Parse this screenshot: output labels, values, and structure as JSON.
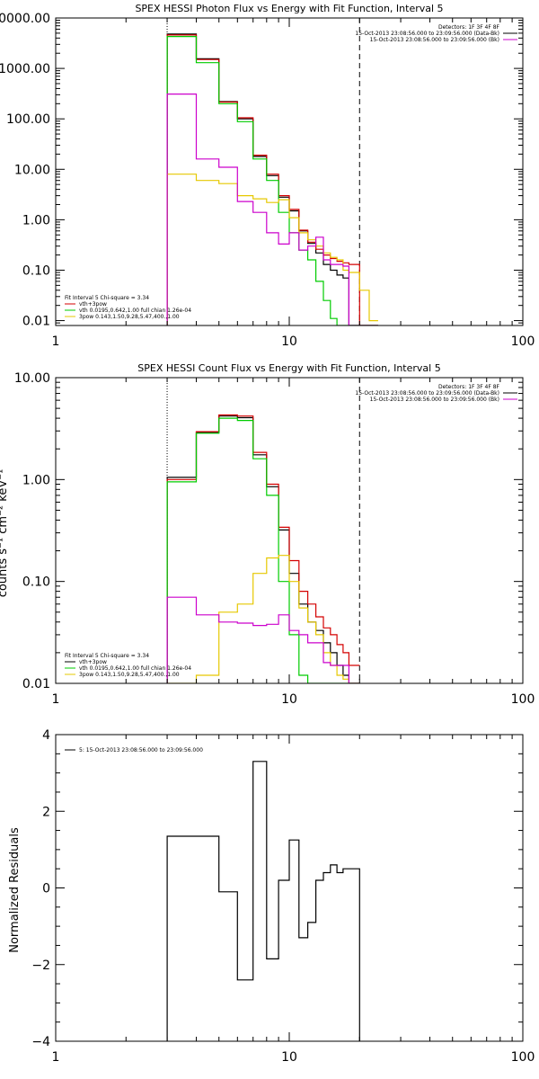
{
  "colors": {
    "total": "#000000",
    "sum": "#d40000",
    "vth": "#00cc00",
    "powerlaw": "#e6c800",
    "background": "#cc00cc",
    "residual": "#000000"
  },
  "chart_data": [
    {
      "type": "line",
      "title": "SPEX HESSI Photon Flux vs Energy with Fit Function, Interval 5",
      "xscale": "log",
      "yscale": "log",
      "xlim": [
        1,
        100
      ],
      "ylim": [
        0.008,
        10000
      ],
      "xticks": [
        {
          "value": 1,
          "label": "1"
        },
        {
          "value": 10,
          "label": "10"
        },
        {
          "value": 100,
          "label": "100"
        }
      ],
      "yticks": [
        {
          "value": 10000,
          "label": "10000.00"
        },
        {
          "value": 1000,
          "label": "1000.00"
        },
        {
          "value": 100,
          "label": "100.00"
        },
        {
          "value": 10,
          "label": "10.00"
        },
        {
          "value": 1,
          "label": "1.00"
        },
        {
          "value": 0.1,
          "label": "0.10"
        },
        {
          "value": 0.01,
          "label": "0.01"
        }
      ],
      "edges": [
        3,
        4,
        5,
        6,
        7,
        8,
        9,
        10,
        11,
        12,
        13,
        14,
        15,
        16,
        17,
        18,
        20,
        22,
        24
      ],
      "series": [
        {
          "key": "total",
          "values": [
            4800,
            1550,
            220,
            100,
            18,
            7.5,
            2.8,
            1.5,
            0.6,
            0.34,
            0.22,
            0.13,
            0.1,
            0.08,
            0.07,
            0.006,
            0.006,
            0.006
          ]
        },
        {
          "key": "sum",
          "values": [
            4600,
            1500,
            215,
            105,
            19,
            8,
            3.0,
            1.6,
            0.62,
            0.36,
            0.26,
            0.2,
            0.17,
            0.15,
            0.14,
            0.13,
            0.006,
            0.006
          ]
        },
        {
          "key": "vth",
          "values": [
            4300,
            1300,
            200,
            88,
            16,
            6,
            1.4,
            0.55,
            0.25,
            0.16,
            0.06,
            0.025,
            0.011,
            0.006,
            0.006,
            0.006,
            0.006,
            0.006
          ]
        },
        {
          "key": "powerlaw",
          "values": [
            8,
            6,
            5.2,
            3,
            2.6,
            2.2,
            2.5,
            1.1,
            0.55,
            0.4,
            0.3,
            0.22,
            0.18,
            0.16,
            0.1,
            0.09,
            0.04,
            0.01
          ]
        },
        {
          "key": "background",
          "values": [
            310,
            16,
            11,
            2.3,
            1.4,
            0.55,
            0.33,
            0.55,
            0.25,
            0.3,
            0.45,
            0.16,
            0.13,
            0.13,
            0.12,
            0.006,
            0.006,
            0.006
          ]
        }
      ],
      "vlines": [
        {
          "x": 3,
          "style": "dotted"
        },
        {
          "x": 20,
          "style": "dashed"
        }
      ],
      "legend_right": [
        "Detectors: 1F 3F 4F 8F",
        "15-Oct-2013 23:08:56.000 to 23:09:56.000 (Data-Bk)",
        "15-Oct-2013 23:08:56.000 to 23:09:56.000 (Bk)"
      ],
      "legend_right_colors": [
        "",
        "total",
        "background"
      ],
      "legend_left": [
        {
          "text": "Fit Interval 5   Chi-square = 3.34",
          "key": ""
        },
        {
          "text": "vth+3pow",
          "key": "sum"
        },
        {
          "text": "vth 0.0195,0.642,1.00  full chian 1.26e-04",
          "key": "vth"
        },
        {
          "text": "3pow 0.143,1.50,9.28,5.47,400.,1.00",
          "key": "powerlaw"
        }
      ]
    },
    {
      "type": "line",
      "title": "SPEX HESSI Count Flux vs Energy with Fit Function, Interval 5",
      "ylabel": "counts s⁻¹ cm⁻² keV⁻¹",
      "xscale": "log",
      "yscale": "log",
      "xlim": [
        1,
        100
      ],
      "ylim": [
        0.01,
        10
      ],
      "xticks": [
        {
          "value": 1,
          "label": "1"
        },
        {
          "value": 10,
          "label": "10"
        },
        {
          "value": 100,
          "label": "100"
        }
      ],
      "yticks": [
        {
          "value": 10,
          "label": "10.00"
        },
        {
          "value": 1,
          "label": "1.00"
        },
        {
          "value": 0.1,
          "label": "0.10"
        },
        {
          "value": 0.01,
          "label": "0.01"
        }
      ],
      "edges": [
        3,
        4,
        5,
        6,
        7,
        8,
        9,
        10,
        11,
        12,
        13,
        14,
        15,
        16,
        17,
        18,
        20
      ],
      "series": [
        {
          "key": "total",
          "values": [
            1.05,
            2.9,
            4.2,
            4.05,
            1.75,
            0.85,
            0.32,
            0.12,
            0.06,
            0.04,
            0.033,
            0.025,
            0.02,
            0.015,
            0.012,
            0.01
          ]
        },
        {
          "key": "sum",
          "values": [
            1.0,
            2.95,
            4.3,
            4.2,
            1.85,
            0.9,
            0.34,
            0.16,
            0.08,
            0.06,
            0.045,
            0.035,
            0.03,
            0.024,
            0.02,
            0.015
          ]
        },
        {
          "key": "vth",
          "values": [
            0.95,
            2.85,
            4.0,
            3.8,
            1.6,
            0.7,
            0.1,
            0.03,
            0.012,
            0.0095,
            0.0095,
            0.0095,
            0.0095,
            0.0095,
            0.0095,
            0.0095
          ]
        },
        {
          "key": "powerlaw",
          "values": [
            0.0095,
            0.012,
            0.05,
            0.06,
            0.12,
            0.17,
            0.18,
            0.1,
            0.055,
            0.04,
            0.03,
            0.02,
            0.015,
            0.012,
            0.011,
            0.01
          ]
        },
        {
          "key": "background",
          "values": [
            0.07,
            0.047,
            0.04,
            0.039,
            0.037,
            0.038,
            0.047,
            0.033,
            0.03,
            0.025,
            0.025,
            0.016,
            0.015,
            0.015,
            0.015,
            0.0095
          ]
        }
      ],
      "vlines": [
        {
          "x": 3,
          "style": "dotted"
        },
        {
          "x": 20,
          "style": "dashed"
        }
      ],
      "legend_right": [
        "Detectors: 1F 3F 4F 8F",
        "15-Oct-2013 23:08:56.000 to 23:09:56.000 (Data-Bk)",
        "15-Oct-2013 23:08:56.000 to 23:09:56.000 (Bk)"
      ],
      "legend_right_colors": [
        "",
        "total",
        "background"
      ],
      "legend_left": [
        {
          "text": "Fit Interval 5   Chi-square = 3.34",
          "key": ""
        },
        {
          "text": "vth+3pow",
          "key": "total"
        },
        {
          "text": "vth 0.0195,0.642,1.00  full chian 1.26e-04",
          "key": "vth"
        },
        {
          "text": "3pow 0.143,1.50,9.28,5.47,400.,1.00",
          "key": "powerlaw"
        }
      ]
    },
    {
      "type": "line",
      "title": "",
      "ylabel": "Normalized Residuals",
      "xscale": "log",
      "yscale": "linear",
      "xlim": [
        1,
        100
      ],
      "ylim": [
        -4,
        4
      ],
      "xticks": [
        {
          "value": 1,
          "label": "1"
        },
        {
          "value": 10,
          "label": "10"
        },
        {
          "value": 100,
          "label": "100"
        }
      ],
      "yticks": [
        {
          "value": 4,
          "label": "4"
        },
        {
          "value": 2,
          "label": "2"
        },
        {
          "value": 0,
          "label": "0"
        },
        {
          "value": -2,
          "label": "−2"
        },
        {
          "value": -4,
          "label": "−4"
        }
      ],
      "edges": [
        3,
        4,
        5,
        6,
        7,
        8,
        9,
        10,
        11,
        12,
        13,
        14,
        15,
        16,
        17,
        18,
        20
      ],
      "series": [
        {
          "key": "residual",
          "values": [
            1.35,
            1.35,
            -0.1,
            -2.4,
            3.3,
            -1.85,
            0.2,
            1.25,
            -1.3,
            -0.9,
            0.2,
            0.4,
            0.6,
            0.4,
            0.5,
            0.5
          ]
        }
      ],
      "drop_to_min": true,
      "legend_left": [
        {
          "text": "5: 15-Oct-2013 23:08:56.000 to 23:09:56.000",
          "key": "residual"
        }
      ]
    }
  ]
}
